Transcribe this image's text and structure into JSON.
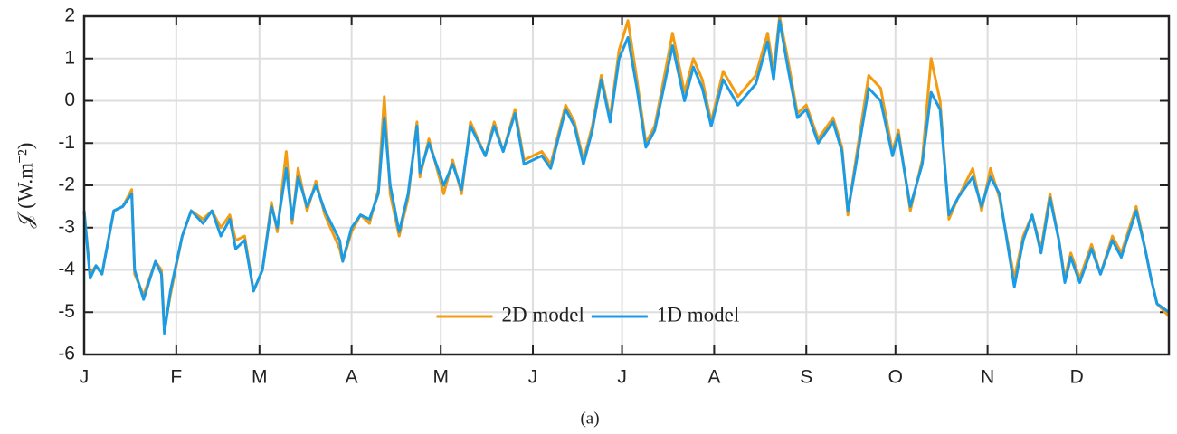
{
  "chart_data": {
    "type": "line",
    "ylabel": "𝒥 (W.m⁻²)",
    "caption": "(a)",
    "x": [
      0,
      2,
      4,
      6,
      10,
      13,
      16,
      17,
      20,
      24,
      26,
      27,
      29,
      33,
      36,
      40,
      43,
      46,
      49,
      51,
      54,
      57,
      60,
      63,
      65,
      68,
      70,
      72,
      75,
      78,
      81,
      86,
      87,
      90,
      93,
      96,
      99,
      101,
      103,
      106,
      109,
      112,
      113,
      116,
      121,
      124,
      127,
      130,
      135,
      138,
      141,
      145,
      148,
      154,
      157,
      162,
      165,
      168,
      171,
      174,
      177,
      180,
      183,
      186,
      189,
      192,
      195,
      198,
      202,
      205,
      208,
      211,
      215,
      220,
      226,
      230,
      232,
      234,
      237,
      240,
      243,
      247,
      252,
      255,
      257,
      259,
      264,
      268,
      272,
      274,
      278,
      282,
      285,
      288,
      291,
      294,
      299,
      302,
      305,
      308,
      313,
      316,
      319,
      322,
      325,
      328,
      330,
      332,
      335,
      339,
      342,
      346,
      349,
      354,
      357,
      359,
      361,
      365
    ],
    "series": [
      {
        "name": "2D model",
        "color": "#f39c12",
        "values": [
          -2.6,
          -4.1,
          -3.9,
          -4.1,
          -2.6,
          -2.5,
          -2.1,
          -4.1,
          -4.6,
          -3.8,
          -4.0,
          -5.4,
          -4.6,
          -3.2,
          -2.6,
          -2.8,
          -2.6,
          -3.0,
          -2.7,
          -3.3,
          -3.2,
          -4.5,
          -4.0,
          -2.4,
          -3.1,
          -1.2,
          -2.9,
          -1.6,
          -2.6,
          -1.9,
          -2.7,
          -3.5,
          -3.8,
          -3.1,
          -2.7,
          -2.9,
          -2.1,
          0.1,
          -2.2,
          -3.2,
          -2.3,
          -0.5,
          -1.8,
          -0.9,
          -2.2,
          -1.4,
          -2.2,
          -0.5,
          -1.3,
          -0.5,
          -1.2,
          -0.2,
          -1.4,
          -1.2,
          -1.5,
          -0.1,
          -0.5,
          -1.4,
          -0.6,
          0.6,
          -0.4,
          1.2,
          1.9,
          0.5,
          -1.0,
          -0.6,
          0.5,
          1.6,
          0.2,
          1.0,
          0.5,
          -0.5,
          0.7,
          0.1,
          0.6,
          1.6,
          0.7,
          2.0,
          0.9,
          -0.3,
          -0.1,
          -0.9,
          -0.4,
          -1.1,
          -2.7,
          -1.7,
          0.6,
          0.3,
          -1.2,
          -0.7,
          -2.6,
          -1.4,
          1.0,
          0.0,
          -2.8,
          -2.3,
          -1.6,
          -2.6,
          -1.6,
          -2.3,
          -4.2,
          -3.2,
          -2.7,
          -3.5,
          -2.2,
          -3.3,
          -4.2,
          -3.6,
          -4.2,
          -3.4,
          -4.1,
          -3.2,
          -3.6,
          -2.5,
          -3.5,
          -4.2,
          -4.8,
          -5.1
        ]
      },
      {
        "name": "1D model",
        "color": "#1a9be6",
        "values": [
          -2.6,
          -4.2,
          -3.9,
          -4.1,
          -2.6,
          -2.5,
          -2.2,
          -4.0,
          -4.7,
          -3.8,
          -4.1,
          -5.5,
          -4.5,
          -3.2,
          -2.6,
          -2.9,
          -2.6,
          -3.2,
          -2.8,
          -3.5,
          -3.3,
          -4.5,
          -4.0,
          -2.5,
          -3.0,
          -1.6,
          -2.8,
          -1.8,
          -2.5,
          -2.0,
          -2.6,
          -3.3,
          -3.8,
          -3.0,
          -2.7,
          -2.8,
          -2.2,
          -0.4,
          -2.0,
          -3.1,
          -2.2,
          -0.6,
          -1.7,
          -1.0,
          -2.0,
          -1.5,
          -2.1,
          -0.6,
          -1.3,
          -0.6,
          -1.2,
          -0.3,
          -1.5,
          -1.3,
          -1.6,
          -0.2,
          -0.6,
          -1.5,
          -0.7,
          0.5,
          -0.5,
          1.0,
          1.5,
          0.3,
          -1.1,
          -0.7,
          0.3,
          1.3,
          0.0,
          0.8,
          0.3,
          -0.6,
          0.5,
          -0.1,
          0.4,
          1.4,
          0.5,
          1.9,
          0.7,
          -0.4,
          -0.2,
          -1.0,
          -0.5,
          -1.2,
          -2.6,
          -1.8,
          0.3,
          0.0,
          -1.3,
          -0.8,
          -2.5,
          -1.5,
          0.2,
          -0.2,
          -2.7,
          -2.3,
          -1.8,
          -2.5,
          -1.8,
          -2.2,
          -4.4,
          -3.3,
          -2.7,
          -3.6,
          -2.3,
          -3.3,
          -4.3,
          -3.7,
          -4.3,
          -3.5,
          -4.1,
          -3.3,
          -3.7,
          -2.6,
          -3.5,
          -4.2,
          -4.8,
          -5.0
        ]
      }
    ],
    "xlim": [
      0,
      365
    ],
    "xticks": [
      {
        "value": 0,
        "label": "J"
      },
      {
        "value": 31,
        "label": "F"
      },
      {
        "value": 59,
        "label": "M"
      },
      {
        "value": 90,
        "label": "A"
      },
      {
        "value": 120,
        "label": "M"
      },
      {
        "value": 151,
        "label": "J"
      },
      {
        "value": 181,
        "label": "J"
      },
      {
        "value": 212,
        "label": "A"
      },
      {
        "value": 243,
        "label": "S"
      },
      {
        "value": 273,
        "label": "O"
      },
      {
        "value": 304,
        "label": "N"
      },
      {
        "value": 334,
        "label": "D"
      }
    ],
    "ylim": [
      -6,
      2
    ],
    "yticks": [
      -6,
      -5,
      -4,
      -3,
      -2,
      -1,
      0,
      1,
      2
    ],
    "grid": true,
    "legend": "lower center"
  }
}
